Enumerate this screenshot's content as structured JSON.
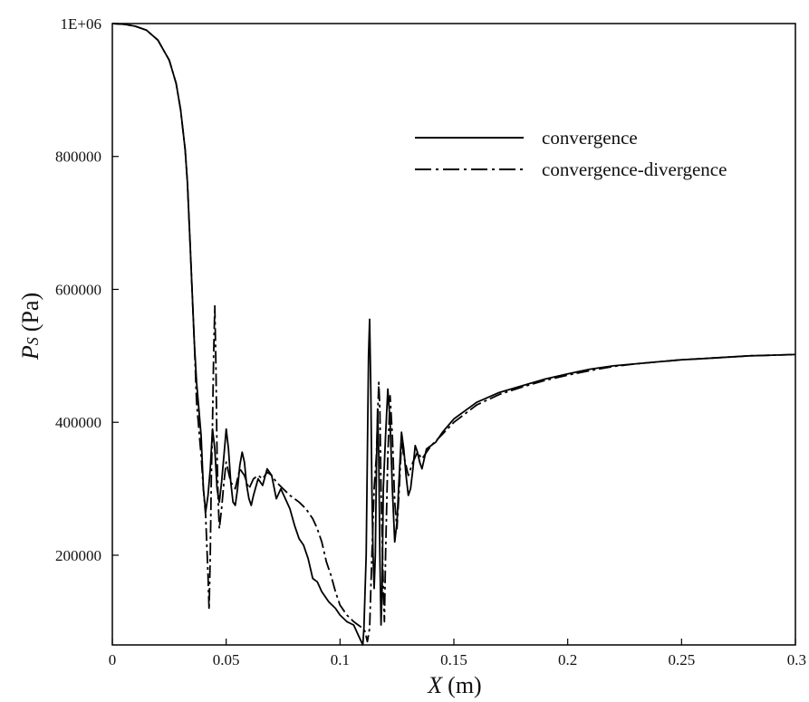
{
  "chart_data": {
    "type": "line",
    "title": "",
    "xlabel": {
      "var": "X",
      "unit": "(m)"
    },
    "ylabel": {
      "var": "P",
      "sub": "S",
      "unit": "(Pa)"
    },
    "xlim": [
      0,
      0.3
    ],
    "ylim": [
      65000,
      1000000
    ],
    "xticks": [
      {
        "value": 0,
        "label": "0"
      },
      {
        "value": 0.05,
        "label": "0.05"
      },
      {
        "value": 0.1,
        "label": "0.1"
      },
      {
        "value": 0.15,
        "label": "0.15"
      },
      {
        "value": 0.2,
        "label": "0.2"
      },
      {
        "value": 0.25,
        "label": "0.25"
      },
      {
        "value": 0.3,
        "label": "0.3"
      }
    ],
    "yticks": [
      {
        "value": 200000,
        "label": "200000"
      },
      {
        "value": 400000,
        "label": "400000"
      },
      {
        "value": 600000,
        "label": "600000"
      },
      {
        "value": 800000,
        "label": "800000"
      },
      {
        "value": 1000000,
        "label": "1E+06"
      }
    ],
    "grid": false,
    "legend_position": "top-right",
    "series": [
      {
        "name": "convergence",
        "style": "solid",
        "color": "#000000",
        "points": [
          [
            0,
            1000000
          ],
          [
            0.005,
            999000
          ],
          [
            0.01,
            996000
          ],
          [
            0.015,
            990000
          ],
          [
            0.02,
            975000
          ],
          [
            0.025,
            945000
          ],
          [
            0.028,
            910000
          ],
          [
            0.03,
            870000
          ],
          [
            0.032,
            810000
          ],
          [
            0.033,
            760000
          ],
          [
            0.034,
            680000
          ],
          [
            0.035,
            600000
          ],
          [
            0.036,
            520000
          ],
          [
            0.037,
            460000
          ],
          [
            0.038,
            420000
          ],
          [
            0.039,
            380000
          ],
          [
            0.04,
            300000
          ],
          [
            0.041,
            265000
          ],
          [
            0.042,
            290000
          ],
          [
            0.043,
            330000
          ],
          [
            0.044,
            390000
          ],
          [
            0.045,
            360000
          ],
          [
            0.046,
            300000
          ],
          [
            0.047,
            280000
          ],
          [
            0.048,
            310000
          ],
          [
            0.049,
            350000
          ],
          [
            0.05,
            390000
          ],
          [
            0.051,
            360000
          ],
          [
            0.052,
            310000
          ],
          [
            0.053,
            280000
          ],
          [
            0.054,
            275000
          ],
          [
            0.055,
            300000
          ],
          [
            0.056,
            335000
          ],
          [
            0.057,
            355000
          ],
          [
            0.058,
            340000
          ],
          [
            0.059,
            305000
          ],
          [
            0.06,
            285000
          ],
          [
            0.061,
            275000
          ],
          [
            0.062,
            290000
          ],
          [
            0.064,
            315000
          ],
          [
            0.066,
            305000
          ],
          [
            0.068,
            330000
          ],
          [
            0.07,
            320000
          ],
          [
            0.072,
            285000
          ],
          [
            0.074,
            300000
          ],
          [
            0.076,
            285000
          ],
          [
            0.078,
            270000
          ],
          [
            0.08,
            245000
          ],
          [
            0.082,
            225000
          ],
          [
            0.084,
            215000
          ],
          [
            0.086,
            195000
          ],
          [
            0.088,
            165000
          ],
          [
            0.09,
            160000
          ],
          [
            0.092,
            145000
          ],
          [
            0.095,
            130000
          ],
          [
            0.098,
            120000
          ],
          [
            0.1,
            110000
          ],
          [
            0.103,
            100000
          ],
          [
            0.106,
            95000
          ],
          [
            0.108,
            80000
          ],
          [
            0.11,
            65000
          ],
          [
            0.1105,
            90000
          ],
          [
            0.1115,
            200000
          ],
          [
            0.112,
            350000
          ],
          [
            0.1125,
            500000
          ],
          [
            0.113,
            555000
          ],
          [
            0.1135,
            450000
          ],
          [
            0.114,
            300000
          ],
          [
            0.1145,
            200000
          ],
          [
            0.115,
            150000
          ],
          [
            0.1155,
            200000
          ],
          [
            0.116,
            330000
          ],
          [
            0.1165,
            420000
          ],
          [
            0.117,
            350000
          ],
          [
            0.1175,
            200000
          ],
          [
            0.118,
            95000
          ],
          [
            0.1185,
            150000
          ],
          [
            0.119,
            300000
          ],
          [
            0.12,
            380000
          ],
          [
            0.121,
            450000
          ],
          [
            0.122,
            400000
          ],
          [
            0.123,
            300000
          ],
          [
            0.124,
            220000
          ],
          [
            0.125,
            250000
          ],
          [
            0.126,
            320000
          ],
          [
            0.127,
            385000
          ],
          [
            0.128,
            360000
          ],
          [
            0.129,
            320000
          ],
          [
            0.13,
            290000
          ],
          [
            0.131,
            300000
          ],
          [
            0.132,
            330000
          ],
          [
            0.133,
            365000
          ],
          [
            0.134,
            355000
          ],
          [
            0.135,
            340000
          ],
          [
            0.136,
            330000
          ],
          [
            0.137,
            345000
          ],
          [
            0.138,
            360000
          ],
          [
            0.14,
            365000
          ],
          [
            0.142,
            370000
          ],
          [
            0.145,
            385000
          ],
          [
            0.15,
            405000
          ],
          [
            0.16,
            430000
          ],
          [
            0.17,
            445000
          ],
          [
            0.18,
            455000
          ],
          [
            0.19,
            465000
          ],
          [
            0.2,
            473000
          ],
          [
            0.21,
            480000
          ],
          [
            0.22,
            485000
          ],
          [
            0.23,
            488000
          ],
          [
            0.24,
            491000
          ],
          [
            0.25,
            494000
          ],
          [
            0.26,
            496000
          ],
          [
            0.27,
            498000
          ],
          [
            0.28,
            500000
          ],
          [
            0.29,
            501000
          ],
          [
            0.3,
            502000
          ]
        ]
      },
      {
        "name": "convergence-divergence",
        "style": "dashdot",
        "color": "#000000",
        "points": [
          [
            0,
            1000000
          ],
          [
            0.005,
            999000
          ],
          [
            0.01,
            996000
          ],
          [
            0.015,
            990000
          ],
          [
            0.02,
            975000
          ],
          [
            0.025,
            945000
          ],
          [
            0.028,
            910000
          ],
          [
            0.03,
            870000
          ],
          [
            0.032,
            810000
          ],
          [
            0.033,
            760000
          ],
          [
            0.034,
            680000
          ],
          [
            0.035,
            600000
          ],
          [
            0.036,
            520000
          ],
          [
            0.037,
            430000
          ],
          [
            0.038,
            390000
          ],
          [
            0.039,
            350000
          ],
          [
            0.04,
            300000
          ],
          [
            0.041,
            260000
          ],
          [
            0.042,
            170000
          ],
          [
            0.0425,
            118000
          ],
          [
            0.043,
            200000
          ],
          [
            0.0435,
            320000
          ],
          [
            0.044,
            400000
          ],
          [
            0.0445,
            500000
          ],
          [
            0.045,
            575000
          ],
          [
            0.0455,
            480000
          ],
          [
            0.046,
            350000
          ],
          [
            0.0465,
            280000
          ],
          [
            0.047,
            240000
          ],
          [
            0.048,
            270000
          ],
          [
            0.049,
            310000
          ],
          [
            0.05,
            340000
          ],
          [
            0.052,
            310000
          ],
          [
            0.054,
            300000
          ],
          [
            0.056,
            330000
          ],
          [
            0.058,
            320000
          ],
          [
            0.06,
            300000
          ],
          [
            0.062,
            315000
          ],
          [
            0.064,
            320000
          ],
          [
            0.066,
            315000
          ],
          [
            0.068,
            325000
          ],
          [
            0.07,
            320000
          ],
          [
            0.072,
            310000
          ],
          [
            0.075,
            300000
          ],
          [
            0.078,
            290000
          ],
          [
            0.08,
            285000
          ],
          [
            0.082,
            280000
          ],
          [
            0.085,
            270000
          ],
          [
            0.088,
            255000
          ],
          [
            0.09,
            240000
          ],
          [
            0.092,
            220000
          ],
          [
            0.094,
            190000
          ],
          [
            0.096,
            170000
          ],
          [
            0.098,
            145000
          ],
          [
            0.1,
            125000
          ],
          [
            0.103,
            110000
          ],
          [
            0.106,
            100000
          ],
          [
            0.108,
            95000
          ],
          [
            0.11,
            90000
          ],
          [
            0.111,
            85000
          ],
          [
            0.112,
            70000
          ],
          [
            0.113,
            90000
          ],
          [
            0.114,
            200000
          ],
          [
            0.115,
            300000
          ],
          [
            0.116,
            350000
          ],
          [
            0.117,
            460000
          ],
          [
            0.1175,
            420000
          ],
          [
            0.118,
            300000
          ],
          [
            0.119,
            150000
          ],
          [
            0.1195,
            100000
          ],
          [
            0.12,
            200000
          ],
          [
            0.121,
            350000
          ],
          [
            0.122,
            440000
          ],
          [
            0.123,
            380000
          ],
          [
            0.124,
            280000
          ],
          [
            0.125,
            240000
          ],
          [
            0.126,
            300000
          ],
          [
            0.127,
            370000
          ],
          [
            0.128,
            350000
          ],
          [
            0.13,
            320000
          ],
          [
            0.132,
            340000
          ],
          [
            0.134,
            355000
          ],
          [
            0.136,
            345000
          ],
          [
            0.138,
            355000
          ],
          [
            0.14,
            365000
          ],
          [
            0.145,
            382000
          ],
          [
            0.15,
            400000
          ],
          [
            0.16,
            426000
          ],
          [
            0.17,
            442000
          ],
          [
            0.18,
            453000
          ],
          [
            0.19,
            463000
          ],
          [
            0.2,
            471000
          ],
          [
            0.21,
            478000
          ],
          [
            0.22,
            484000
          ],
          [
            0.23,
            488000
          ],
          [
            0.24,
            491000
          ],
          [
            0.25,
            494000
          ],
          [
            0.26,
            496000
          ],
          [
            0.27,
            498000
          ],
          [
            0.28,
            500000
          ],
          [
            0.29,
            501000
          ],
          [
            0.3,
            502000
          ]
        ]
      }
    ]
  }
}
